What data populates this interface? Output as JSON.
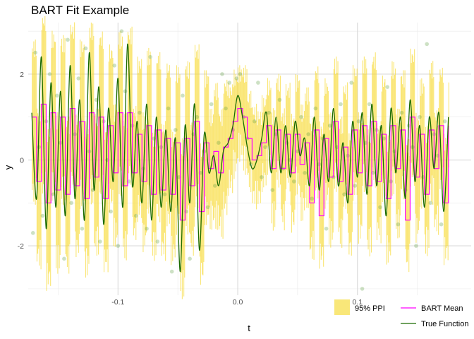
{
  "chart_data": {
    "type": "line",
    "title": "BART Fit Example",
    "xlabel": "t",
    "ylabel": "y",
    "xlim": [
      -0.175,
      0.195
    ],
    "ylim": [
      -3.15,
      3.2
    ],
    "x_ticks": [
      -0.1,
      0.0,
      0.1
    ],
    "x_tick_labels": [
      "-0.1",
      "0.0",
      "0.1"
    ],
    "y_ticks": [
      -2,
      0,
      2
    ],
    "y_tick_labels": [
      "-2",
      "0",
      "2"
    ],
    "grid": true,
    "legend_position": "bottom-right",
    "legend": [
      "95% PPI",
      "BART Mean",
      "True Function"
    ],
    "colors": {
      "ppi_band": "#f7d82e",
      "bart_mean": "#ff00ff",
      "true_function": "#1a6b00",
      "points": "#5a9a3a"
    },
    "x_range_of_data": [
      -0.172,
      0.176
    ],
    "true_function": {
      "name": "True Function",
      "x": [
        -0.172,
        -0.168,
        -0.164,
        -0.16,
        -0.156,
        -0.152,
        -0.148,
        -0.144,
        -0.14,
        -0.136,
        -0.132,
        -0.128,
        -0.124,
        -0.12,
        -0.116,
        -0.112,
        -0.108,
        -0.104,
        -0.1,
        -0.096,
        -0.092,
        -0.088,
        -0.084,
        -0.08,
        -0.076,
        -0.072,
        -0.068,
        -0.064,
        -0.06,
        -0.056,
        -0.052,
        -0.048,
        -0.044,
        -0.04,
        -0.036,
        -0.032,
        -0.028,
        -0.024,
        -0.02,
        -0.016,
        -0.012,
        -0.008,
        -0.004,
        0.0,
        0.004,
        0.008,
        0.012,
        0.016,
        0.02,
        0.024,
        0.028,
        0.032,
        0.036,
        0.04,
        0.044,
        0.048,
        0.052,
        0.056,
        0.06,
        0.064,
        0.068,
        0.072,
        0.076,
        0.08,
        0.084,
        0.088,
        0.092,
        0.096,
        0.1,
        0.104,
        0.108,
        0.112,
        0.116,
        0.12,
        0.124,
        0.128,
        0.132,
        0.136,
        0.14,
        0.144,
        0.148,
        0.152,
        0.156,
        0.16,
        0.164,
        0.168,
        0.172,
        0.176
      ],
      "y": [
        1.1,
        -0.9,
        2.4,
        -1.6,
        1.8,
        -1.1,
        1.6,
        -1.3,
        2.2,
        -0.9,
        1.4,
        -1.4,
        2.5,
        -0.7,
        1.7,
        -1.5,
        1.2,
        -0.5,
        1.9,
        -1.1,
        2.7,
        -0.6,
        0.9,
        -1.0,
        1.3,
        -1.4,
        1.0,
        -1.1,
        0.7,
        -1.2,
        0.5,
        -2.6,
        0.8,
        -1.0,
        1.3,
        -2.1,
        0.6,
        -0.3,
        0.1,
        -0.6,
        0.2,
        0.4,
        0.8,
        1.5,
        1.0,
        0.3,
        -0.2,
        0.0,
        0.5,
        1.1,
        -0.3,
        1.0,
        -0.3,
        0.8,
        -0.4,
        0.9,
        0.1,
        0.5,
        -0.6,
        1.0,
        -0.7,
        0.6,
        -0.5,
        1.2,
        -0.6,
        0.4,
        -1.0,
        0.9,
        -0.4,
        1.1,
        -0.8,
        1.3,
        -0.6,
        0.8,
        -1.3,
        1.2,
        -0.3,
        1.0,
        -0.9,
        1.4,
        -0.5,
        0.8,
        -1.1,
        1.0,
        -0.2,
        1.1,
        -1.2,
        1.0
      ]
    },
    "bart_mean": {
      "name": "BART Mean",
      "x": [
        -0.172,
        -0.168,
        -0.164,
        -0.16,
        -0.156,
        -0.152,
        -0.148,
        -0.144,
        -0.14,
        -0.136,
        -0.132,
        -0.128,
        -0.124,
        -0.12,
        -0.116,
        -0.112,
        -0.108,
        -0.104,
        -0.1,
        -0.096,
        -0.092,
        -0.088,
        -0.084,
        -0.08,
        -0.076,
        -0.072,
        -0.068,
        -0.064,
        -0.06,
        -0.056,
        -0.052,
        -0.048,
        -0.044,
        -0.04,
        -0.036,
        -0.032,
        -0.028,
        -0.024,
        -0.02,
        -0.016,
        -0.012,
        -0.008,
        -0.004,
        0.0,
        0.004,
        0.008,
        0.012,
        0.016,
        0.02,
        0.024,
        0.028,
        0.032,
        0.036,
        0.04,
        0.044,
        0.048,
        0.052,
        0.056,
        0.06,
        0.064,
        0.068,
        0.072,
        0.076,
        0.08,
        0.084,
        0.088,
        0.092,
        0.096,
        0.1,
        0.104,
        0.108,
        0.112,
        0.116,
        0.12,
        0.124,
        0.128,
        0.132,
        0.136,
        0.14,
        0.144,
        0.148,
        0.152,
        0.156,
        0.16,
        0.164,
        0.168,
        0.172,
        0.176
      ],
      "y": [
        1.0,
        -0.5,
        1.3,
        -1.0,
        1.1,
        -0.7,
        1.0,
        -0.8,
        1.2,
        -0.6,
        0.9,
        -0.9,
        1.1,
        -0.4,
        1.0,
        -0.9,
        0.8,
        -0.3,
        1.1,
        -0.6,
        1.1,
        -0.3,
        0.6,
        -0.5,
        0.8,
        -0.8,
        0.7,
        -0.7,
        0.5,
        -0.8,
        0.4,
        -1.4,
        0.5,
        -0.6,
        0.9,
        -1.2,
        0.4,
        -0.2,
        0.2,
        -0.3,
        0.3,
        0.5,
        0.9,
        1.2,
        1.0,
        0.5,
        0.0,
        0.1,
        0.4,
        0.8,
        -0.2,
        0.7,
        -0.2,
        0.6,
        -0.3,
        0.6,
        -0.1,
        0.4,
        -1.0,
        0.7,
        -1.3,
        0.5,
        -0.4,
        0.9,
        -0.5,
        0.3,
        -0.8,
        0.7,
        -0.3,
        0.8,
        -0.6,
        0.9,
        -0.5,
        0.6,
        -0.9,
        0.8,
        -0.2,
        0.7,
        -1.4,
        1.0,
        -0.4,
        0.6,
        -0.8,
        0.7,
        -0.2,
        0.8,
        -1.0,
        0.8
      ]
    },
    "ppi_band": {
      "name": "95% PPI",
      "x": [
        -0.172,
        -0.168,
        -0.164,
        -0.16,
        -0.156,
        -0.152,
        -0.148,
        -0.144,
        -0.14,
        -0.136,
        -0.132,
        -0.128,
        -0.124,
        -0.12,
        -0.116,
        -0.112,
        -0.108,
        -0.104,
        -0.1,
        -0.096,
        -0.092,
        -0.088,
        -0.084,
        -0.08,
        -0.076,
        -0.072,
        -0.068,
        -0.064,
        -0.06,
        -0.056,
        -0.052,
        -0.048,
        -0.044,
        -0.04,
        -0.036,
        -0.032,
        -0.028,
        -0.024,
        -0.02,
        -0.016,
        -0.012,
        -0.008,
        -0.004,
        0.0,
        0.004,
        0.008,
        0.012,
        0.016,
        0.02,
        0.024,
        0.028,
        0.032,
        0.036,
        0.04,
        0.044,
        0.048,
        0.052,
        0.056,
        0.06,
        0.064,
        0.068,
        0.072,
        0.076,
        0.08,
        0.084,
        0.088,
        0.092,
        0.096,
        0.1,
        0.104,
        0.108,
        0.112,
        0.116,
        0.12,
        0.124,
        0.128,
        0.132,
        0.136,
        0.14,
        0.144,
        0.148,
        0.152,
        0.156,
        0.16,
        0.164,
        0.168,
        0.172,
        0.176
      ],
      "lower": [
        -0.7,
        -2.2,
        -0.6,
        -2.7,
        -0.6,
        -2.3,
        -0.7,
        -2.3,
        -0.4,
        -2.0,
        -0.8,
        -2.4,
        -0.7,
        -1.9,
        -0.7,
        -2.3,
        -0.9,
        -1.7,
        -0.5,
        -2.0,
        -0.3,
        -1.6,
        -1.1,
        -1.8,
        -0.9,
        -2.0,
        -1.1,
        -2.0,
        -1.3,
        -2.1,
        -1.4,
        -2.9,
        -1.4,
        -1.9,
        -0.8,
        -2.6,
        -1.2,
        -1.3,
        -1.3,
        -1.5,
        -1.0,
        -0.5,
        -0.1,
        0.3,
        0.0,
        -0.4,
        -0.8,
        -0.8,
        -0.4,
        0.0,
        -1.3,
        -0.3,
        -1.3,
        -0.4,
        -1.4,
        -0.5,
        -1.1,
        -0.8,
        -2.0,
        -0.6,
        -2.2,
        -0.8,
        -1.7,
        -0.4,
        -1.7,
        -0.9,
        -2.0,
        -0.6,
        -1.6,
        -0.4,
        -1.9,
        -0.3,
        -1.6,
        -0.7,
        -2.1,
        -0.5,
        -1.5,
        -0.6,
        -2.3,
        -0.3,
        -1.6,
        -0.8,
        -1.9,
        -0.7,
        -1.4,
        -0.5,
        -2.1,
        -0.5
      ],
      "upper": [
        2.6,
        1.1,
        3.2,
        0.6,
        2.8,
        0.9,
        2.7,
        0.8,
        3.0,
        0.9,
        2.6,
        0.7,
        3.0,
        1.0,
        2.8,
        0.6,
        2.5,
        1.1,
        2.8,
        0.9,
        2.9,
        1.1,
        2.2,
        0.9,
        2.4,
        0.5,
        2.3,
        0.7,
        2.1,
        0.5,
        2.0,
        0.3,
        2.1,
        0.8,
        2.5,
        0.2,
        1.9,
        1.0,
        1.6,
        1.0,
        1.7,
        1.6,
        1.9,
        2.0,
        2.0,
        1.4,
        1.1,
        1.0,
        1.3,
        1.7,
        1.0,
        1.8,
        1.0,
        1.6,
        0.9,
        1.8,
        1.1,
        1.5,
        0.8,
        2.0,
        0.7,
        1.7,
        0.9,
        2.2,
        0.8,
        1.6,
        0.5,
        2.0,
        0.9,
        2.2,
        0.6,
        2.3,
        0.7,
        1.8,
        0.4,
        2.1,
        1.0,
        1.9,
        0.3,
        2.4,
        0.9,
        1.7,
        0.6,
        2.1,
        1.0,
        2.0,
        0.4,
        2.0
      ]
    },
    "points": {
      "x": [
        -0.171,
        -0.169,
        -0.166,
        -0.163,
        -0.16,
        -0.157,
        -0.154,
        -0.151,
        -0.148,
        -0.145,
        -0.142,
        -0.139,
        -0.136,
        -0.133,
        -0.13,
        -0.127,
        -0.124,
        -0.121,
        -0.118,
        -0.115,
        -0.112,
        -0.109,
        -0.106,
        -0.103,
        -0.1,
        -0.097,
        -0.094,
        -0.091,
        -0.088,
        -0.085,
        -0.082,
        -0.079,
        -0.076,
        -0.073,
        -0.07,
        -0.067,
        -0.064,
        -0.061,
        -0.058,
        -0.055,
        -0.052,
        -0.049,
        -0.046,
        -0.043,
        -0.04,
        -0.037,
        -0.034,
        -0.031,
        -0.028,
        -0.025,
        -0.022,
        -0.019,
        -0.016,
        -0.013,
        -0.01,
        -0.007,
        -0.004,
        -0.001,
        0.002,
        0.005,
        0.008,
        0.011,
        0.014,
        0.017,
        0.02,
        0.023,
        0.026,
        0.029,
        0.032,
        0.035,
        0.038,
        0.041,
        0.044,
        0.047,
        0.05,
        0.053,
        0.056,
        0.059,
        0.062,
        0.065,
        0.068,
        0.071,
        0.074,
        0.077,
        0.08,
        0.083,
        0.086,
        0.089,
        0.092,
        0.095,
        0.098,
        0.101,
        0.104,
        0.107,
        0.11,
        0.113,
        0.116,
        0.119,
        0.122,
        0.125,
        0.128,
        0.131,
        0.134,
        0.137,
        0.14,
        0.143,
        0.146,
        0.149,
        0.152,
        0.155,
        0.158,
        0.161,
        0.164,
        0.167,
        0.17,
        0.173
      ],
      "y": [
        -1.7,
        2.5,
        0.3,
        -1.3,
        0.9,
        2.0,
        -0.8,
        1.5,
        0.4,
        -2.3,
        2.8,
        -1.0,
        0.6,
        1.9,
        -1.6,
        2.6,
        0.2,
        -0.7,
        1.4,
        -1.9,
        0.9,
        0.0,
        -1.2,
        2.2,
        -2.0,
        3.0,
        1.6,
        -0.5,
        0.8,
        -1.3,
        1.1,
        -0.2,
        -1.6,
        2.4,
        0.5,
        -1.9,
        0.3,
        -0.8,
        1.2,
        -2.6,
        0.7,
        -0.4,
        1.5,
        -1.2,
        -2.3,
        0.6,
        1.0,
        -0.3,
        0.2,
        -1.1,
        1.3,
        -0.6,
        0.4,
        2.0,
        1.2,
        1.8,
        0.7,
        1.9,
        2.0,
        1.0,
        0.5,
        -0.1,
        0.9,
        1.8,
        -0.4,
        0.3,
        1.1,
        -0.7,
        0.6,
        1.4,
        -0.2,
        0.4,
        0.0,
        -0.5,
        0.2,
        1.0,
        -0.3,
        0.6,
        -0.9,
        1.2,
        -0.1,
        0.5,
        -1.6,
        0.8,
        -0.4,
        0.3,
        1.3,
        -0.8,
        0.1,
        1.8,
        -0.6,
        0.9,
        -3.0,
        0.4,
        1.3,
        -0.3,
        0.7,
        -1.1,
        0.5,
        1.7,
        -0.5,
        0.2,
        -1.5,
        1.1,
        -0.7,
        0.8,
        0.3,
        -2.0,
        1.0,
        -0.4,
        2.7,
        -1.0,
        0.6,
        0.1,
        -1.5,
        0.9
      ]
    }
  }
}
